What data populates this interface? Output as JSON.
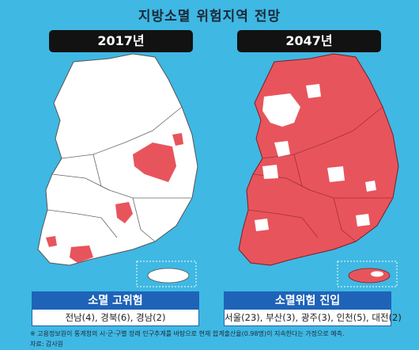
{
  "title": "지방소멸 위험지역 전망",
  "left": {
    "year": "2017년",
    "caption_title": "소멸 고위험",
    "caption_body": "전남(4), 경북(6), 경남(2)"
  },
  "right": {
    "year": "2047년",
    "caption_title": "소멸위험 진입",
    "caption_body": "서울(23), 부산(3), 광주(3), 인천(5), 대전(2)"
  },
  "footnote": "※ 고용정보원이 통계청의 시·군·구별 장래 인구추계를 바탕으로 현재 합계출산율(0.98명)이 지속한다는 가정으로 예측.",
  "source": "자료: 감사원",
  "colors": {
    "background": "#3fb8e3",
    "risk_area": "#e8545c",
    "safe_area": "#ffffff",
    "caption_header": "#1e63b8"
  }
}
